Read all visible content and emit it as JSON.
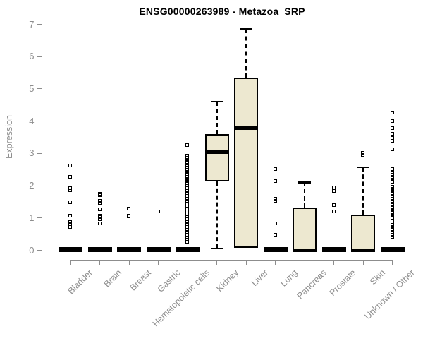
{
  "chart_data": {
    "type": "boxplot",
    "title": "ENSG00000263989 - Metazoa_SRP",
    "ylabel": "Expression",
    "xlabel": "",
    "ylim": [
      0,
      7
    ],
    "yticks": [
      0,
      1,
      2,
      3,
      4,
      5,
      6,
      7
    ],
    "grid": false,
    "legend": "none",
    "colors": {
      "box_fill": "#ede8d0",
      "box_stroke": "#000000",
      "median": "#000000",
      "outlier": "#000000",
      "axis": "#8d8d8d",
      "title": "#000000",
      "background": "#ffffff"
    },
    "categories": [
      "Bladder",
      "Brain",
      "Breast",
      "Gastric",
      "Hematopoietic cells",
      "Kidney",
      "Liver",
      "Lung",
      "Pancreas",
      "Prostate",
      "Skin",
      "Unknown / Other"
    ],
    "series": [
      {
        "name": "Bladder",
        "q1": 0,
        "median": 0,
        "q3": 0,
        "whisker_low": 0,
        "whisker_high": 0,
        "outliers": [
          2.6,
          2.25,
          1.9,
          1.83,
          1.47,
          1.05,
          0.85,
          0.78,
          0.7
        ]
      },
      {
        "name": "Brain",
        "q1": 0,
        "median": 0,
        "q3": 0,
        "whisker_low": 0,
        "whisker_high": 0,
        "outliers": [
          1.72,
          1.68,
          1.5,
          1.45,
          1.25,
          1.05,
          1.0,
          0.95,
          0.82
        ]
      },
      {
        "name": "Breast",
        "q1": 0,
        "median": 0,
        "q3": 0,
        "whisker_low": 0,
        "whisker_high": 0,
        "outliers": [
          1.27,
          1.06,
          1.02
        ]
      },
      {
        "name": "Gastric",
        "q1": 0,
        "median": 0,
        "q3": 0,
        "whisker_low": 0,
        "whisker_high": 0,
        "outliers": [
          1.18
        ]
      },
      {
        "name": "Hematopoietic cells",
        "q1": 0,
        "median": 0,
        "q3": 0,
        "whisker_low": 0,
        "whisker_high": 0,
        "outliers": [
          3.23,
          2.9,
          2.84,
          2.78,
          2.72,
          2.66,
          2.6,
          2.54,
          2.47,
          2.4,
          2.33,
          2.26,
          2.19,
          2.12,
          2.05,
          1.98,
          1.9,
          1.82,
          1.74,
          1.66,
          1.58,
          1.5,
          1.42,
          1.34,
          1.26,
          1.18,
          1.1,
          1.02,
          0.94,
          0.86,
          0.78,
          0.7,
          0.62,
          0.54,
          0.46,
          0.38,
          0.3,
          0.23
        ]
      },
      {
        "name": "Kidney",
        "q1": 2.13,
        "median": 3.02,
        "q3": 3.58,
        "whisker_low": 0.05,
        "whisker_high": 4.6,
        "outliers": []
      },
      {
        "name": "Liver",
        "q1": 0.07,
        "median": 3.78,
        "q3": 5.33,
        "whisker_low": 0.07,
        "whisker_high": 6.85,
        "outliers": []
      },
      {
        "name": "Lung",
        "q1": 0,
        "median": 0,
        "q3": 0,
        "whisker_low": 0,
        "whisker_high": 0,
        "outliers": [
          2.49,
          2.13,
          1.58,
          1.5,
          0.8,
          0.45
        ]
      },
      {
        "name": "Pancreas",
        "q1": 0,
        "median": 0,
        "q3": 1.32,
        "whisker_low": 0,
        "whisker_high": 2.1,
        "outliers": []
      },
      {
        "name": "Prostate",
        "q1": 0,
        "median": 0,
        "q3": 0,
        "whisker_low": 0,
        "whisker_high": 0,
        "outliers": [
          1.92,
          1.81,
          1.37,
          1.19
        ]
      },
      {
        "name": "Skin",
        "q1": 0,
        "median": 0,
        "q3": 1.1,
        "whisker_low": 0,
        "whisker_high": 2.57,
        "outliers": [
          3.0,
          2.93
        ]
      },
      {
        "name": "Unknown / Other",
        "q1": 0,
        "median": 0,
        "q3": 0,
        "whisker_low": 0,
        "whisker_high": 0,
        "outliers": [
          4.24,
          3.99,
          3.77,
          3.58,
          3.5,
          3.45,
          3.36,
          3.11,
          2.49,
          2.38,
          2.32,
          2.26,
          2.2,
          2.09,
          1.94,
          1.88,
          1.82,
          1.76,
          1.7,
          1.64,
          1.58,
          1.52,
          1.46,
          1.4,
          1.34,
          1.28,
          1.22,
          1.16,
          1.1,
          1.04,
          0.98,
          0.9,
          0.82,
          0.76,
          0.7,
          0.64,
          0.58,
          0.52,
          0.46,
          0.4
        ]
      }
    ]
  }
}
